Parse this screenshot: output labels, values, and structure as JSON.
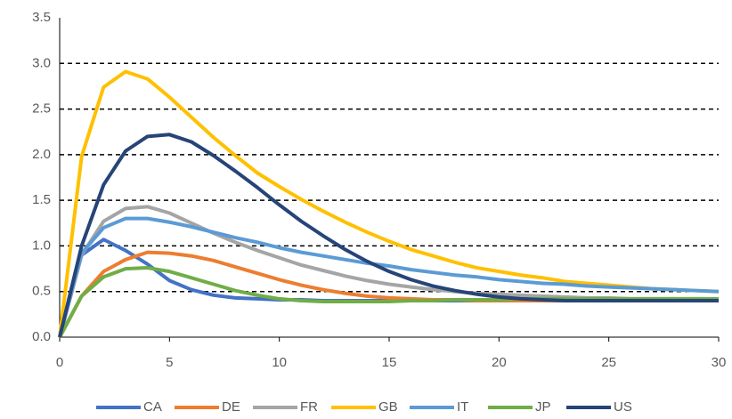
{
  "chart_data": {
    "type": "line",
    "x": [
      0,
      1,
      2,
      3,
      4,
      5,
      6,
      7,
      8,
      9,
      10,
      11,
      12,
      13,
      14,
      15,
      16,
      17,
      18,
      19,
      20,
      21,
      22,
      23,
      24,
      25,
      26,
      27,
      28,
      29,
      30
    ],
    "xlim": [
      0,
      30
    ],
    "xticks": [
      0,
      5,
      10,
      15,
      20,
      25,
      30
    ],
    "ylim": [
      0,
      3.5
    ],
    "yticks": [
      {
        "value": 0,
        "label": "0.0"
      },
      {
        "value": 0.5,
        "label": "0.5"
      },
      {
        "value": 1,
        "label": "1.0"
      },
      {
        "value": 1.5,
        "label": "1.5"
      },
      {
        "value": 2,
        "label": "2.0"
      },
      {
        "value": 2.5,
        "label": "2.5"
      },
      {
        "value": 3,
        "label": "3.0"
      },
      {
        "value": 3.5,
        "label": "3.5"
      }
    ],
    "grid": true,
    "legend": "bottom",
    "series": [
      {
        "name": "CA",
        "color": "#4472c4",
        "values": [
          0,
          0.9,
          1.07,
          0.95,
          0.8,
          0.62,
          0.52,
          0.46,
          0.43,
          0.42,
          0.41,
          0.41,
          0.4,
          0.4,
          0.4,
          0.4,
          0.4,
          0.4,
          0.4,
          0.4,
          0.4,
          0.4,
          0.4,
          0.4,
          0.4,
          0.4,
          0.4,
          0.4,
          0.4,
          0.4,
          0.4
        ]
      },
      {
        "name": "DE",
        "color": "#ed7d31",
        "values": [
          0,
          0.45,
          0.72,
          0.85,
          0.93,
          0.92,
          0.89,
          0.84,
          0.77,
          0.7,
          0.63,
          0.57,
          0.52,
          0.48,
          0.45,
          0.43,
          0.42,
          0.41,
          0.41,
          0.4,
          0.4,
          0.4,
          0.4,
          0.4,
          0.4,
          0.4,
          0.4,
          0.4,
          0.4,
          0.4,
          0.4
        ]
      },
      {
        "name": "FR",
        "color": "#a5a5a5",
        "values": [
          0,
          0.9,
          1.27,
          1.41,
          1.43,
          1.36,
          1.25,
          1.14,
          1.04,
          0.95,
          0.87,
          0.79,
          0.73,
          0.67,
          0.62,
          0.58,
          0.55,
          0.52,
          0.5,
          0.48,
          0.47,
          0.46,
          0.45,
          0.44,
          0.43,
          0.43,
          0.42,
          0.42,
          0.42,
          0.41,
          0.41
        ]
      },
      {
        "name": "GB",
        "color": "#ffc000",
        "values": [
          0,
          1.98,
          2.74,
          2.91,
          2.83,
          2.63,
          2.41,
          2.19,
          1.99,
          1.8,
          1.65,
          1.51,
          1.38,
          1.26,
          1.15,
          1.05,
          0.96,
          0.89,
          0.82,
          0.76,
          0.72,
          0.68,
          0.65,
          0.61,
          0.59,
          0.57,
          0.55,
          0.53,
          0.52,
          0.51,
          0.5
        ]
      },
      {
        "name": "IT",
        "color": "#5b9bd5",
        "values": [
          0,
          0.92,
          1.2,
          1.3,
          1.3,
          1.26,
          1.21,
          1.15,
          1.09,
          1.04,
          0.98,
          0.93,
          0.89,
          0.85,
          0.81,
          0.78,
          0.74,
          0.71,
          0.68,
          0.66,
          0.63,
          0.61,
          0.59,
          0.58,
          0.56,
          0.55,
          0.54,
          0.53,
          0.52,
          0.51,
          0.5
        ]
      },
      {
        "name": "JP",
        "color": "#70ad47",
        "values": [
          0,
          0.45,
          0.66,
          0.75,
          0.76,
          0.72,
          0.65,
          0.58,
          0.51,
          0.46,
          0.42,
          0.4,
          0.39,
          0.39,
          0.39,
          0.39,
          0.4,
          0.4,
          0.41,
          0.41,
          0.41,
          0.42,
          0.42,
          0.42,
          0.42,
          0.42,
          0.42,
          0.42,
          0.42,
          0.42,
          0.42
        ]
      },
      {
        "name": "US",
        "color": "#264478",
        "values": [
          0,
          1.0,
          1.67,
          2.04,
          2.2,
          2.22,
          2.14,
          1.99,
          1.82,
          1.64,
          1.45,
          1.27,
          1.11,
          0.96,
          0.83,
          0.72,
          0.63,
          0.56,
          0.51,
          0.47,
          0.44,
          0.42,
          0.41,
          0.4,
          0.4,
          0.4,
          0.4,
          0.4,
          0.4,
          0.4,
          0.4
        ]
      }
    ]
  }
}
